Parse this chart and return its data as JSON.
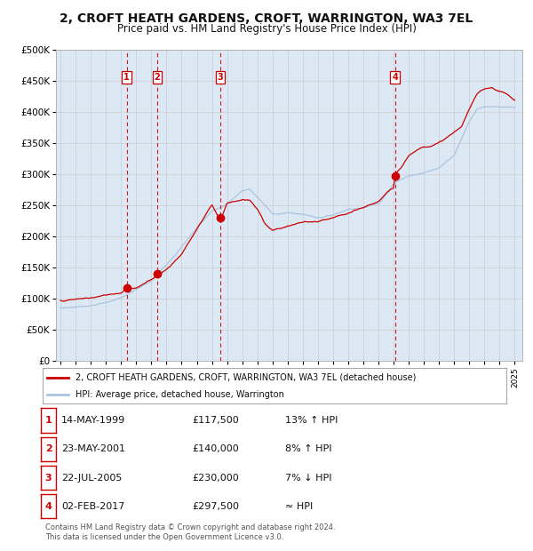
{
  "title": "2, CROFT HEATH GARDENS, CROFT, WARRINGTON, WA3 7EL",
  "subtitle": "Price paid vs. HM Land Registry's House Price Index (HPI)",
  "title_fontsize": 10,
  "subtitle_fontsize": 8.5,
  "background_color": "#ffffff",
  "plot_bg_color": "#dce9f5",
  "grid_color": "#cccccc",
  "ylabel_ticks": [
    "£0",
    "£50K",
    "£100K",
    "£150K",
    "£200K",
    "£250K",
    "£300K",
    "£350K",
    "£400K",
    "£450K",
    "£500K"
  ],
  "ytick_values": [
    0,
    50000,
    100000,
    150000,
    200000,
    250000,
    300000,
    350000,
    400000,
    450000,
    500000
  ],
  "ylim": [
    0,
    500000
  ],
  "xlim_start": 1994.7,
  "xlim_end": 2025.5,
  "hpi_color": "#aac4e0",
  "price_color": "#cc0000",
  "sale_marker_color": "#cc0000",
  "vline_color": "#cc0000",
  "legend_entry1": "2, CROFT HEATH GARDENS, CROFT, WARRINGTON, WA3 7EL (detached house)",
  "legend_entry2": "HPI: Average price, detached house, Warrington",
  "sales": [
    {
      "label": "1",
      "date": "14-MAY-1999",
      "price": 117500,
      "year": 1999.37,
      "hpi_rel": "13% ↑ HPI"
    },
    {
      "label": "2",
      "date": "23-MAY-2001",
      "price": 140000,
      "year": 2001.39,
      "hpi_rel": "8% ↑ HPI"
    },
    {
      "label": "3",
      "date": "22-JUL-2005",
      "price": 230000,
      "year": 2005.56,
      "hpi_rel": "7% ↓ HPI"
    },
    {
      "label": "4",
      "date": "02-FEB-2017",
      "price": 297500,
      "year": 2017.09,
      "hpi_rel": "≈ HPI"
    }
  ],
  "footer_line1": "Contains HM Land Registry data © Crown copyright and database right 2024.",
  "footer_line2": "This data is licensed under the Open Government Licence v3.0.",
  "hpi_anchors_x": [
    1995.0,
    1996.0,
    1997.0,
    1998.0,
    1999.0,
    2000.0,
    2001.0,
    2002.0,
    2003.0,
    2004.0,
    2005.0,
    2005.5,
    2006.0,
    2007.0,
    2007.5,
    2008.0,
    2009.0,
    2010.0,
    2011.0,
    2012.0,
    2013.0,
    2014.0,
    2015.0,
    2016.0,
    2017.0,
    2018.0,
    2019.0,
    2020.0,
    2021.0,
    2022.0,
    2022.5,
    2023.0,
    2024.0,
    2025.0
  ],
  "hpi_anchors_y": [
    85000,
    87000,
    90000,
    95000,
    103000,
    115000,
    128000,
    155000,
    185000,
    215000,
    243000,
    248000,
    255000,
    275000,
    278000,
    265000,
    238000,
    240000,
    238000,
    233000,
    238000,
    248000,
    252000,
    258000,
    292000,
    305000,
    310000,
    318000,
    340000,
    395000,
    415000,
    420000,
    418000,
    415000
  ],
  "price_anchors_x": [
    1995.0,
    1996.0,
    1997.0,
    1998.0,
    1999.0,
    1999.37,
    2000.0,
    2001.0,
    2001.39,
    2002.0,
    2003.0,
    2004.0,
    2004.8,
    2005.0,
    2005.56,
    2006.0,
    2006.5,
    2007.0,
    2007.5,
    2008.0,
    2008.5,
    2009.0,
    2009.5,
    2010.0,
    2011.0,
    2012.0,
    2013.0,
    2014.0,
    2015.0,
    2016.0,
    2016.5,
    2017.0,
    2017.09,
    2017.5,
    2018.0,
    2018.5,
    2019.0,
    2019.5,
    2020.0,
    2021.0,
    2021.5,
    2022.0,
    2022.5,
    2023.0,
    2023.5,
    2024.0,
    2024.5,
    2025.0
  ],
  "price_anchors_y": [
    97000,
    99000,
    101000,
    105000,
    110000,
    117500,
    120000,
    132000,
    140000,
    150000,
    175000,
    215000,
    248000,
    255000,
    230000,
    258000,
    262000,
    265000,
    263000,
    248000,
    225000,
    215000,
    218000,
    222000,
    228000,
    228000,
    232000,
    238000,
    245000,
    255000,
    268000,
    275000,
    297500,
    310000,
    330000,
    338000,
    345000,
    348000,
    352000,
    368000,
    378000,
    405000,
    428000,
    438000,
    440000,
    435000,
    430000,
    420000
  ]
}
